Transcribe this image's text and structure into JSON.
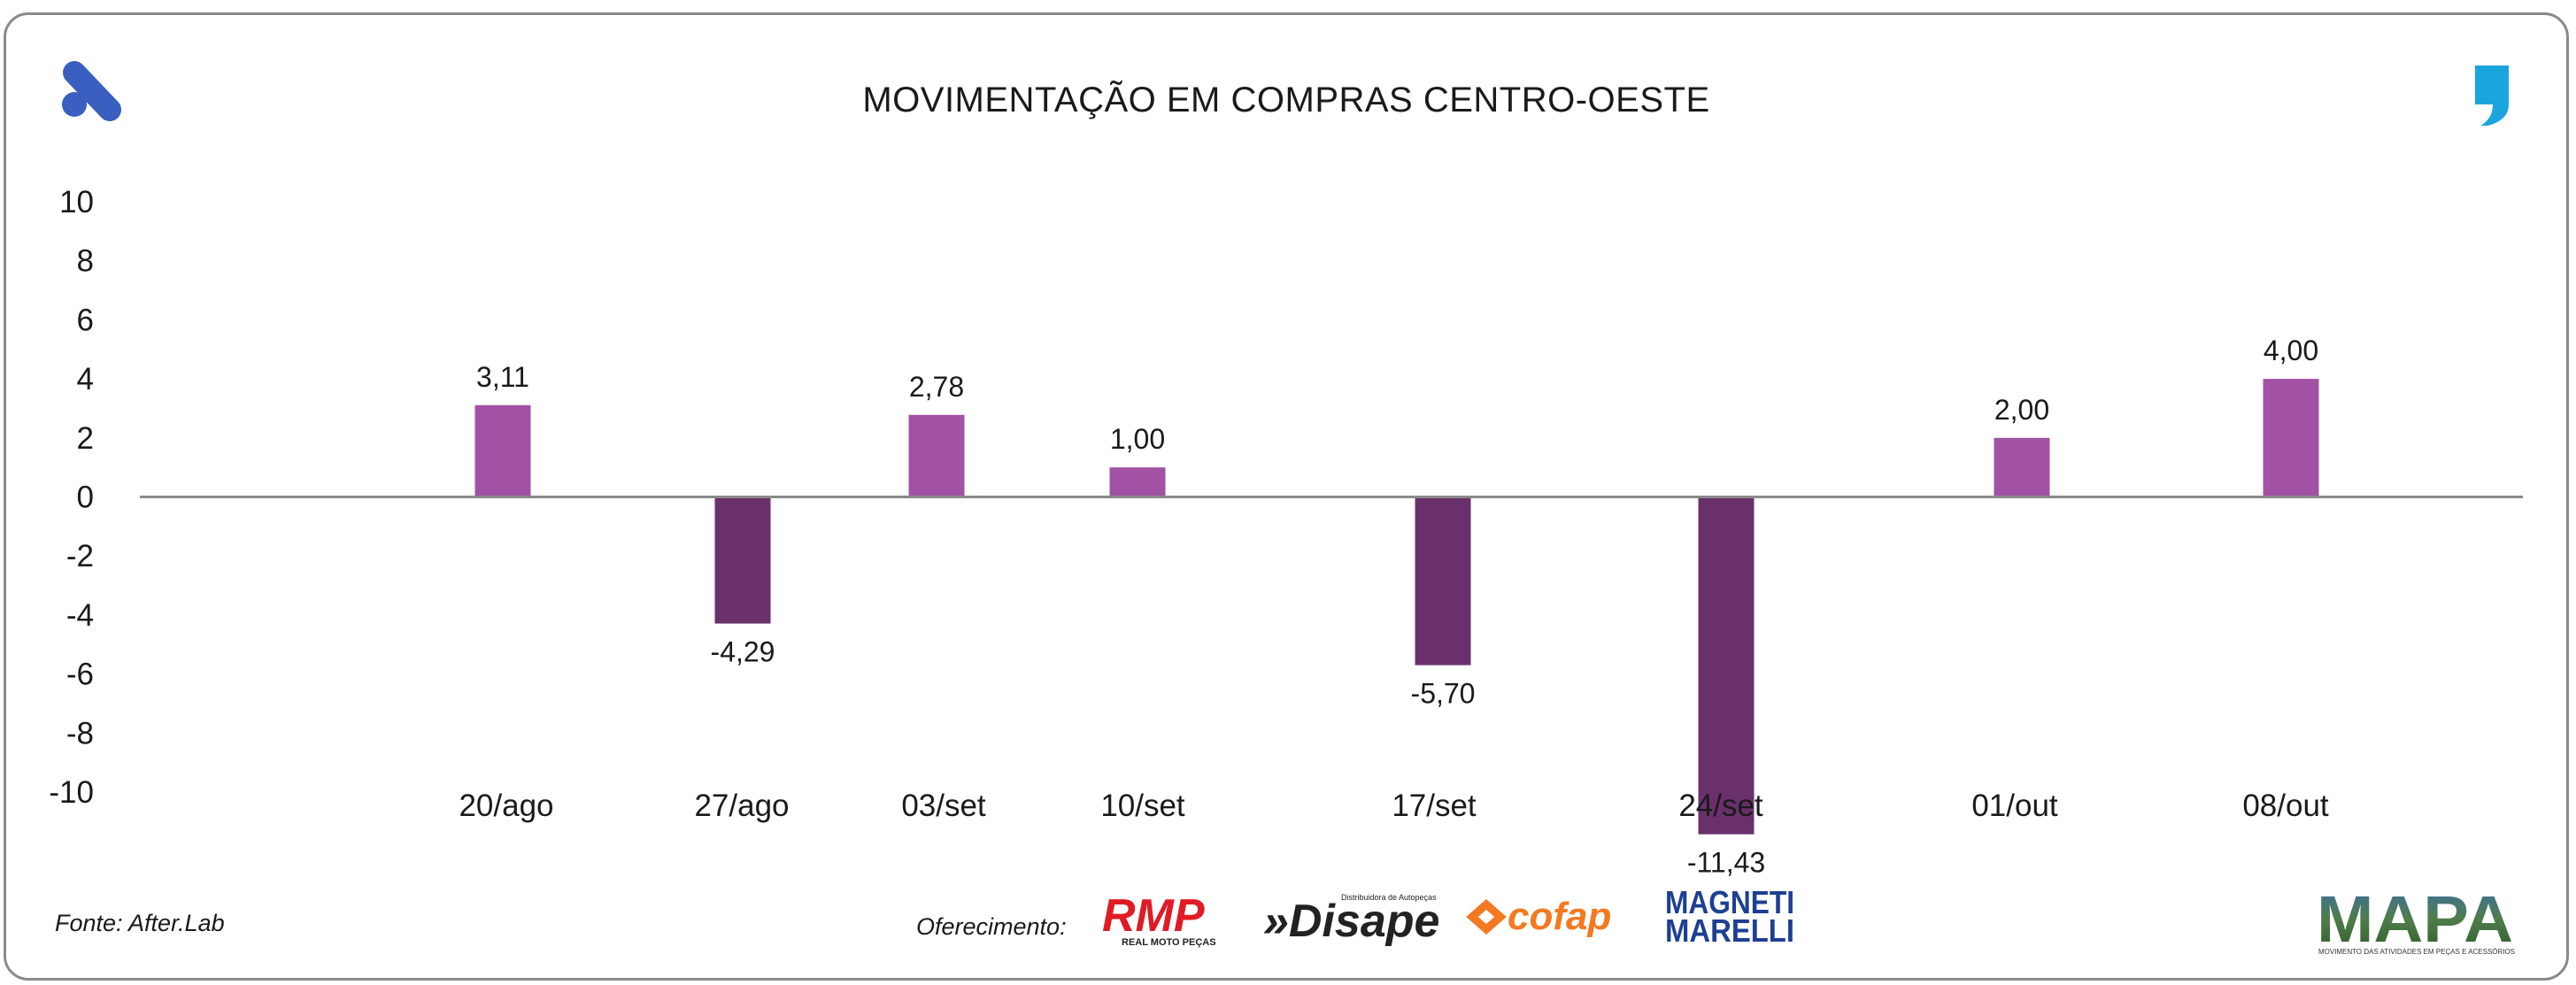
{
  "footer": {
    "source": "Fonte: After.Lab",
    "sponsor_label": "Oferecimento:",
    "sponsors": [
      "RMP",
      "REAL MOTO PEÇAS",
      "»Disape",
      "Distribuidora de Autopeças",
      "cofap",
      "MAGNETI",
      "MARELLI"
    ],
    "brand": "MAPA",
    "brand_tagline": "MOVIMENTO DAS ATIVIDADES EM PEÇAS E ACESSÓRIOS"
  },
  "colors": {
    "positive": "#a152a4",
    "negative": "#6a306c",
    "axis": "#8a8a8a",
    "logo_left": "#3a5fc0",
    "logo_right": "#1aa5dd"
  },
  "chart_data": {
    "type": "bar",
    "title": "MOVIMENTAÇÃO EM COMPRAS CENTRO-OESTE",
    "xlabel": "",
    "ylabel": "",
    "ylim": [
      -10,
      10
    ],
    "yticks": [
      "10",
      "8",
      "6",
      "4",
      "2",
      "0",
      "-2",
      "-4",
      "-6",
      "-8",
      "-10"
    ],
    "categories": [
      "20/ago",
      "27/ago",
      "03/set",
      "10/set",
      "17/set",
      "24/set",
      "01/out",
      "08/out"
    ],
    "values": [
      3.11,
      -4.29,
      2.78,
      1.0,
      -5.7,
      -11.43,
      2.0,
      4.0
    ],
    "value_labels": [
      "3,11",
      "-4,29",
      "2,78",
      "1,00",
      "-5,70",
      "-11,43",
      "2,00",
      "4,00"
    ]
  }
}
